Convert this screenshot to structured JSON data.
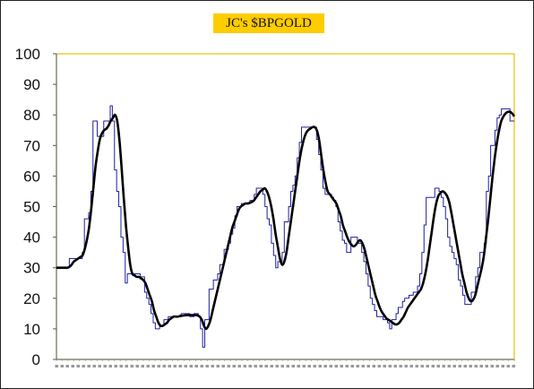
{
  "chart_data": {
    "type": "line",
    "title": "JC's $BPGOLD",
    "xlabel": "",
    "ylabel": "",
    "ylim": [
      0,
      100
    ],
    "yticks": [
      0,
      10,
      20,
      30,
      40,
      50,
      60,
      70,
      80,
      90,
      100
    ],
    "grid": false,
    "legend": "none",
    "x_tick_labels_note": "dense, illegible date labels along x axis",
    "series": [
      {
        "name": "",
        "color": "#1f1fa0",
        "style": "step",
        "values": [
          30,
          30,
          30,
          30,
          30,
          30,
          33,
          33,
          33,
          33,
          33,
          33,
          35,
          46,
          46,
          48,
          55,
          78,
          78,
          73,
          73,
          73,
          78,
          78,
          78,
          83,
          78,
          62,
          55,
          50,
          40,
          35,
          25,
          28,
          28,
          28,
          28,
          28,
          28,
          27,
          27,
          22,
          20,
          18,
          15,
          12,
          10,
          10,
          11,
          11,
          13,
          13,
          14,
          14,
          14,
          14,
          14,
          14,
          15,
          15,
          15,
          15,
          14,
          14,
          15,
          15,
          14,
          10,
          4,
          13,
          13,
          23,
          23,
          26,
          26,
          28,
          31,
          31,
          36,
          36,
          38,
          41,
          43,
          47,
          50,
          50,
          51,
          51,
          51,
          51,
          52,
          52,
          54,
          56,
          56,
          56,
          54,
          50,
          46,
          44,
          38,
          34,
          30,
          32,
          32,
          35,
          45,
          45,
          50,
          55,
          57,
          60,
          66,
          71,
          76,
          76,
          76,
          76,
          76,
          76,
          76,
          72,
          67,
          62,
          56,
          54,
          54,
          54,
          53,
          52,
          50,
          45,
          42,
          39,
          38,
          35,
          35,
          40,
          40,
          40,
          38,
          38,
          35,
          32,
          28,
          24,
          20,
          18,
          16,
          14,
          14,
          14,
          13,
          13,
          12,
          10,
          13,
          13,
          15,
          17,
          17,
          19,
          20,
          20,
          21,
          21,
          22,
          22,
          24,
          28,
          35,
          44,
          53,
          53,
          53,
          53,
          56,
          56,
          55,
          53,
          50,
          46,
          40,
          37,
          35,
          33,
          31,
          26,
          24,
          21,
          18,
          18,
          18,
          22,
          22,
          27,
          30,
          35,
          35,
          38,
          55,
          60,
          70,
          70,
          75,
          79,
          80,
          82,
          82,
          82,
          82,
          78,
          78,
          78
        ]
      },
      {
        "name": "",
        "color": "#000000",
        "style": "smooth",
        "values": [
          30,
          30,
          30,
          30,
          30,
          30,
          30.3,
          31,
          32,
          32.5,
          33,
          33.5,
          34,
          36,
          39,
          43,
          49,
          56,
          63,
          68,
          72,
          74,
          75,
          75.5,
          76.5,
          78,
          79,
          80,
          78,
          72,
          63,
          53,
          44,
          37,
          31,
          28,
          27.5,
          27,
          27,
          26.5,
          26,
          25,
          23,
          21,
          19,
          16,
          14,
          12,
          11,
          11,
          11.5,
          12,
          13,
          13.5,
          14,
          14,
          14,
          14.2,
          14.3,
          14.4,
          14.5,
          14.5,
          14.5,
          14.5,
          14.5,
          14.4,
          14,
          13,
          11,
          10,
          11,
          13,
          16,
          19,
          22,
          25,
          28,
          31,
          34,
          37,
          40,
          43,
          45,
          47,
          49,
          50,
          50.5,
          51,
          51,
          51.2,
          51.5,
          52,
          53,
          54,
          55,
          55.5,
          56,
          55,
          53,
          50,
          46,
          41,
          37,
          33,
          31,
          32,
          35,
          40,
          45,
          50,
          55,
          60,
          65,
          69,
          72,
          74,
          75,
          75.5,
          76,
          76,
          75,
          72,
          67,
          62,
          58,
          55,
          54,
          53,
          52,
          51,
          49,
          47,
          44,
          42,
          40,
          38.5,
          37.5,
          37,
          37.5,
          38.5,
          39,
          38,
          36,
          33,
          30,
          27,
          24,
          21,
          19,
          17,
          15.5,
          14.5,
          13.5,
          13,
          12.5,
          12,
          11.5,
          11.5,
          12,
          13,
          14,
          15.5,
          17,
          18,
          19,
          20,
          21,
          22,
          23,
          25,
          28,
          32,
          37,
          42,
          47,
          51,
          53.5,
          54.5,
          55,
          54.5,
          53.5,
          51.5,
          48,
          44,
          40,
          36,
          32,
          28,
          25,
          22,
          20,
          19,
          19.5,
          21,
          24,
          27,
          30,
          34,
          40,
          46,
          53,
          60,
          66,
          71,
          75,
          78,
          79.5,
          80.5,
          81,
          81,
          80.5,
          79.5
        ]
      }
    ]
  }
}
